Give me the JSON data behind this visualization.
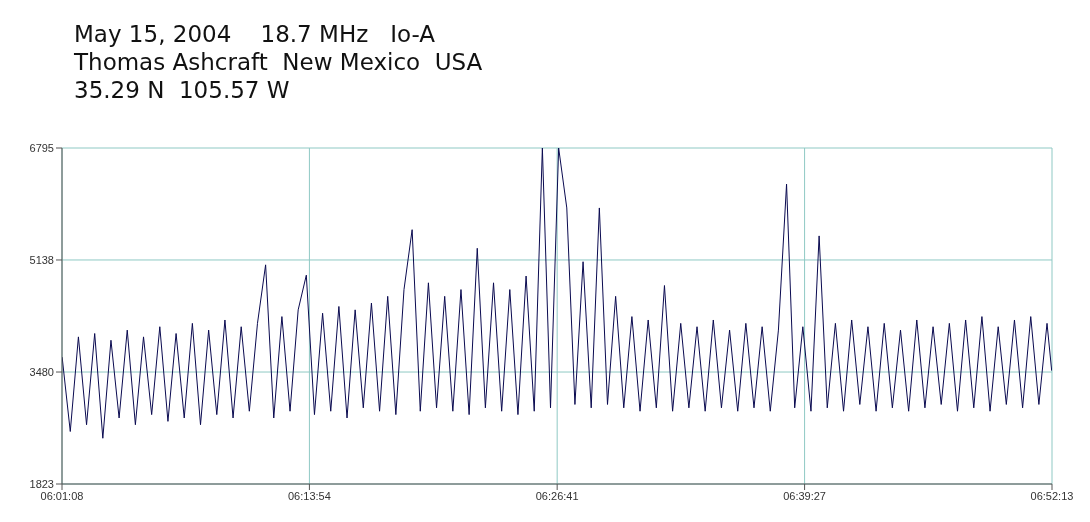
{
  "chart_data": {
    "type": "line",
    "title": "May 15, 2004    18.7 MHz   Io-A",
    "subtitle": "Thomas Ashcraft  New Mexico  USA",
    "annotations": [
      "35.29 N  105.57 W"
    ],
    "x": [
      6.019,
      6.026,
      6.033,
      6.04,
      6.047,
      6.054,
      6.061,
      6.068,
      6.075,
      6.082,
      6.089,
      6.096,
      6.103,
      6.11,
      6.117,
      6.124,
      6.131,
      6.138,
      6.145,
      6.152,
      6.159,
      6.166,
      6.173,
      6.18,
      6.187,
      6.194,
      6.201,
      6.208,
      6.215,
      6.222,
      6.229,
      6.236,
      6.243,
      6.25,
      6.257,
      6.264,
      6.271,
      6.278,
      6.285,
      6.292,
      6.299,
      6.306,
      6.313,
      6.32,
      6.327,
      6.334,
      6.341,
      6.348,
      6.355,
      6.362,
      6.369,
      6.376,
      6.383,
      6.39,
      6.397,
      6.404,
      6.411,
      6.418,
      6.425,
      6.432,
      6.439,
      6.446,
      6.453,
      6.46,
      6.467,
      6.474,
      6.481,
      6.488,
      6.495,
      6.502,
      6.509,
      6.516,
      6.523,
      6.53,
      6.537,
      6.544,
      6.551,
      6.558,
      6.565,
      6.572,
      6.579,
      6.586,
      6.593,
      6.6,
      6.607,
      6.614,
      6.621,
      6.628,
      6.635,
      6.642,
      6.649,
      6.656,
      6.663,
      6.67,
      6.677,
      6.684,
      6.691,
      6.698,
      6.705,
      6.712,
      6.719,
      6.726,
      6.733,
      6.74,
      6.747,
      6.754,
      6.761,
      6.768,
      6.775,
      6.782,
      6.789,
      6.796,
      6.803,
      6.81,
      6.817,
      6.824,
      6.831,
      6.838,
      6.845,
      6.852,
      6.859,
      6.866,
      6.87
    ],
    "series": [
      {
        "color": "#0a0a50",
        "values": [
          3700,
          2600,
          4000,
          2700,
          4050,
          2500,
          3950,
          2800,
          4100,
          2700,
          4000,
          2850,
          4150,
          2750,
          4050,
          2800,
          4200,
          2700,
          4100,
          2850,
          4250,
          2800,
          4150,
          2900,
          4200,
          5066,
          2800,
          4300,
          2900,
          4400,
          4913,
          2850,
          4350,
          2900,
          4450,
          2800,
          4400,
          2950,
          4500,
          2900,
          4600,
          2850,
          4700,
          5586,
          2900,
          4800,
          2950,
          4600,
          2900,
          4700,
          2850,
          5311,
          2950,
          4800,
          2900,
          4700,
          2850,
          4900,
          2900,
          6795,
          2950,
          6795,
          5908,
          3000,
          5112,
          2950,
          5908,
          3000,
          4600,
          2950,
          4300,
          2900,
          4250,
          2950,
          4760,
          2900,
          4200,
          2950,
          4150,
          2900,
          4250,
          2950,
          4100,
          2900,
          4200,
          2950,
          4150,
          2900,
          4100,
          6260,
          2950,
          4150,
          2900,
          5494,
          2950,
          4200,
          2900,
          4250,
          3000,
          4150,
          2900,
          4200,
          2950,
          4100,
          2900,
          4250,
          2950,
          4150,
          3000,
          4200,
          2900,
          4250,
          2950,
          4300,
          2900,
          4150,
          3000,
          4250,
          2950,
          4300,
          3000,
          4200,
          3500
        ]
      }
    ],
    "xlim": [
      6.018889,
      6.870278
    ],
    "xticks": [
      {
        "value": 6.018889,
        "label": "06:01:08"
      },
      {
        "value": 6.231667,
        "label": "06:13:54"
      },
      {
        "value": 6.444722,
        "label": "06:26:41"
      },
      {
        "value": 6.6575,
        "label": "06:39:27"
      },
      {
        "value": 6.870278,
        "label": "06:52:13"
      }
    ],
    "ylim": [
      1823,
      6795
    ],
    "yticks": [
      1823,
      3480,
      5138,
      6795
    ],
    "grid": true
  }
}
